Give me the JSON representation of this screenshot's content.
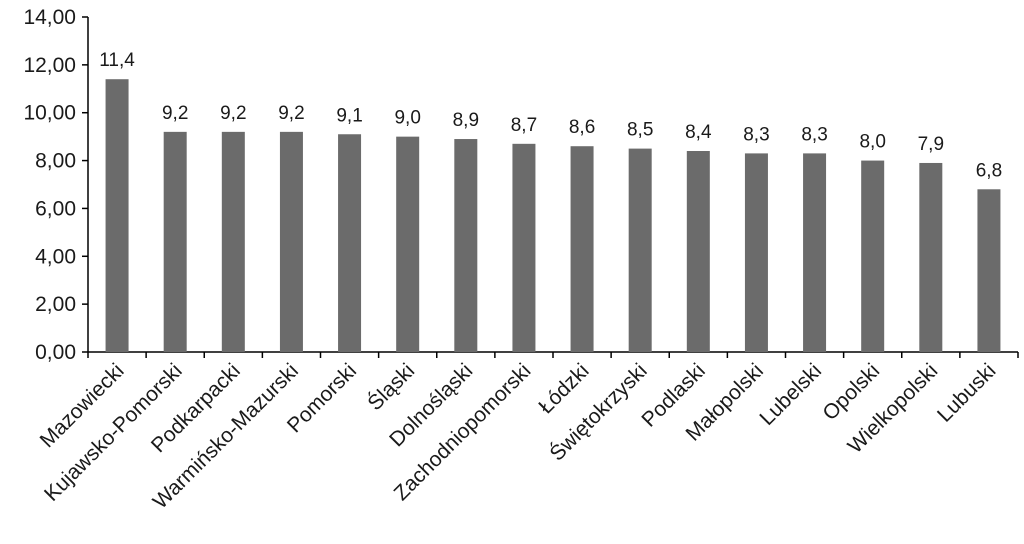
{
  "chart_data": {
    "type": "bar",
    "title": "",
    "xlabel": "",
    "ylabel": "",
    "ylim": [
      0,
      14
    ],
    "yticks": [
      0,
      2,
      4,
      6,
      8,
      10,
      12,
      14
    ],
    "ytick_labels": [
      "0,00",
      "2,00",
      "4,00",
      "6,00",
      "8,00",
      "10,00",
      "12,00",
      "14,00"
    ],
    "categories": [
      "Mazowiecki",
      "Kujawsko-Pomorski",
      "Podkarpacki",
      "Warmińsko-Mazurski",
      "Pomorski",
      "Śląski",
      "Dolnośląski",
      "Zachodniopomorski",
      "Łódzki",
      "Świętokrzyski",
      "Podlaski",
      "Małopolski",
      "Lubelski",
      "Opolski",
      "Wielkopolski",
      "Lubuski"
    ],
    "values": [
      11.4,
      9.2,
      9.2,
      9.2,
      9.1,
      9.0,
      8.9,
      8.7,
      8.6,
      8.5,
      8.4,
      8.3,
      8.3,
      8.0,
      7.9,
      6.8
    ],
    "data_labels": [
      "11,4",
      "9,2",
      "9,2",
      "9,2",
      "9,1",
      "9,0",
      "8,9",
      "8,7",
      "8,6",
      "8,5",
      "8,4",
      "8,3",
      "8,3",
      "8,0",
      "7,9",
      "6,8"
    ],
    "grid": false,
    "legend": "none",
    "bar_color": "#6b6b6b",
    "axis_color": "#000000"
  }
}
